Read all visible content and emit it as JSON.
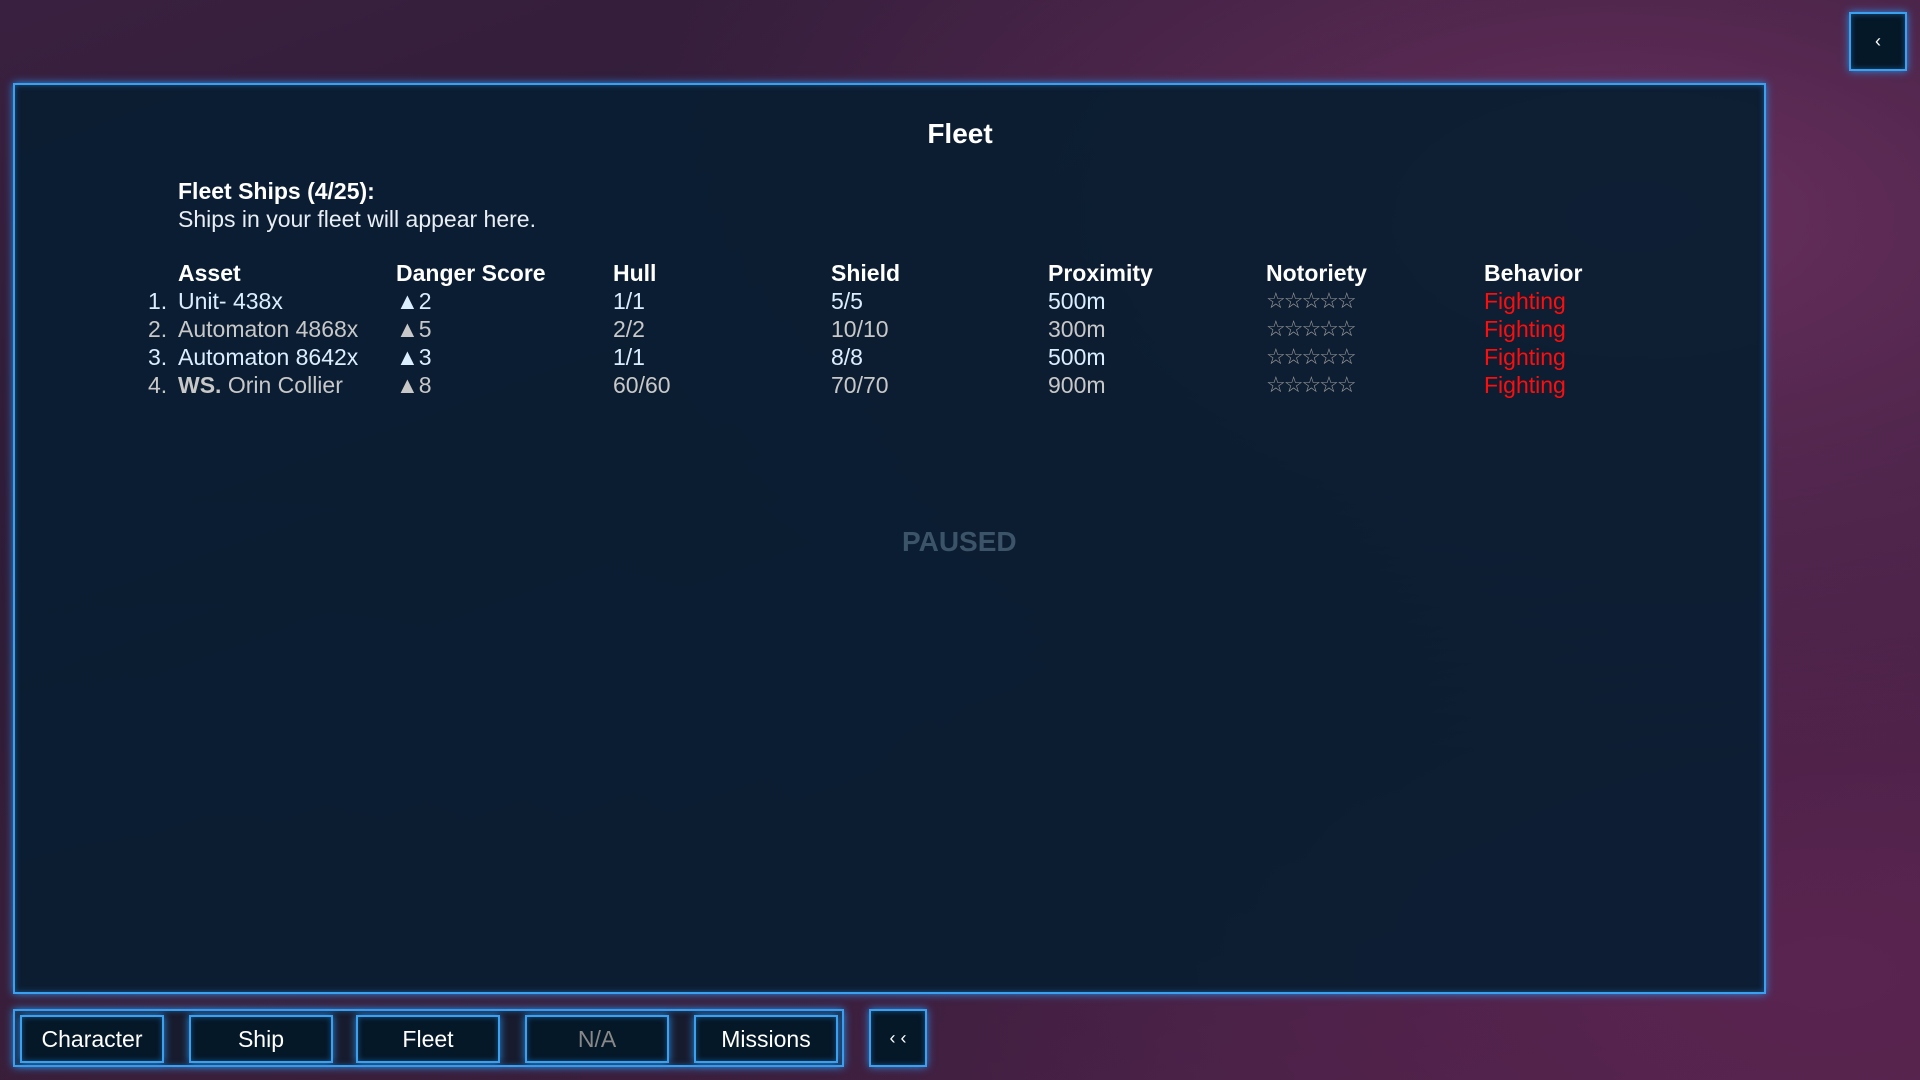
{
  "title": "Fleet",
  "fleet": {
    "heading": "Fleet Ships (4/25):",
    "subtitle": "Ships in your fleet will appear here."
  },
  "columns": [
    "Asset",
    "Danger Score",
    "Hull",
    "Shield",
    "Proximity",
    "Notoriety",
    "Behavior"
  ],
  "rows": [
    {
      "num": "1.",
      "prefix": "",
      "asset": "Unit- 438x",
      "danger": "▲2",
      "hull": "1/1",
      "shield": "5/5",
      "proximity": "500m",
      "notoriety": "☆☆☆☆☆",
      "behavior": "Fighting"
    },
    {
      "num": "2.",
      "prefix": "",
      "asset": "Automaton 4868x",
      "danger": "▲5",
      "hull": "2/2",
      "shield": "10/10",
      "proximity": "300m",
      "notoriety": "☆☆☆☆☆",
      "behavior": "Fighting"
    },
    {
      "num": "3.",
      "prefix": "",
      "asset": "Automaton 8642x",
      "danger": "▲3",
      "hull": "1/1",
      "shield": "8/8",
      "proximity": "500m",
      "notoriety": "☆☆☆☆☆",
      "behavior": "Fighting"
    },
    {
      "num": "4.",
      "prefix": "WS.",
      "asset": " Orin Collier",
      "danger": "▲8",
      "hull": "60/60",
      "shield": "70/70",
      "proximity": "900m",
      "notoriety": "☆☆☆☆☆",
      "behavior": "Fighting"
    }
  ],
  "notoriety_stars": 0,
  "paused": "PAUSED",
  "nav": {
    "character": "Character",
    "ship": "Ship",
    "fleet": "Fleet",
    "na": "N/A",
    "missions": "Missions",
    "collapse": "‹ ‹",
    "toggle": "‹"
  },
  "colors": {
    "accent": "#3aa0f0",
    "behavior": "#ff0d0d"
  }
}
